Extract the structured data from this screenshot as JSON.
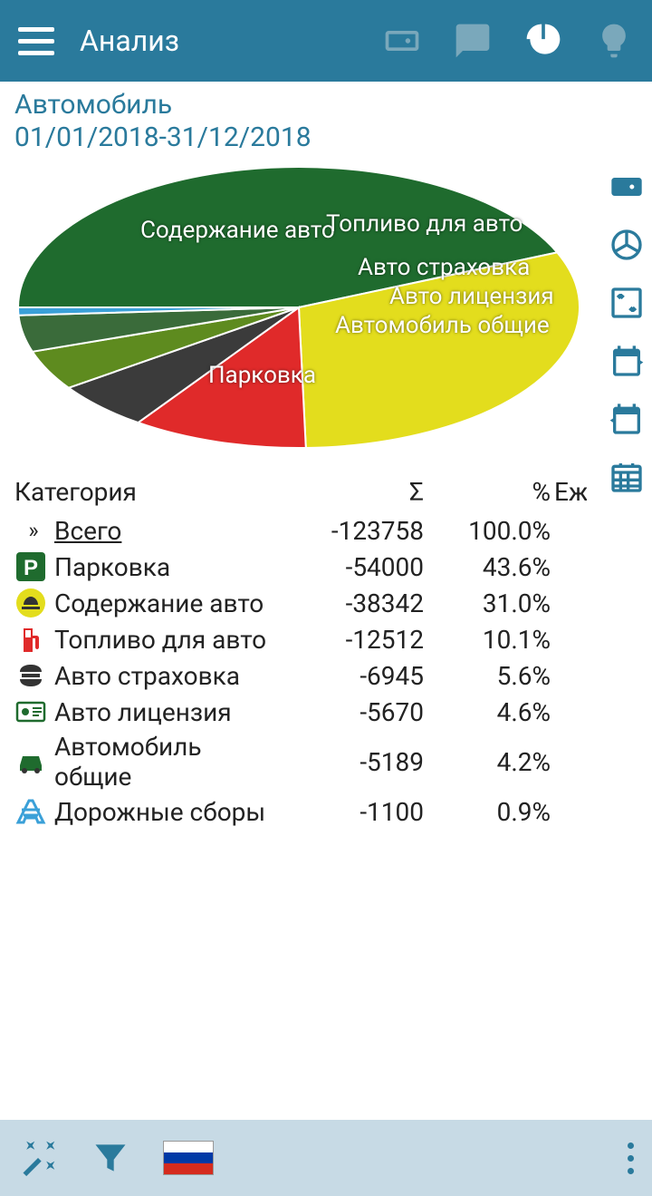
{
  "topbar": {
    "title": "Анализ"
  },
  "header": {
    "category": "Автомобиль",
    "date_range": "01/01/2018-31/12/2018"
  },
  "chart": {
    "type": "pie",
    "slices": [
      {
        "label": "Парковка",
        "percent": 43.6,
        "color": "#1f6b2e"
      },
      {
        "label": "Содержание авто",
        "percent": 31.0,
        "color": "#e3dd1d"
      },
      {
        "label": "Топливо для авто",
        "percent": 10.1,
        "color": "#e02a2a"
      },
      {
        "label": "Авто страховка",
        "percent": 5.6,
        "color": "#3b3b3b"
      },
      {
        "label": "Авто лицензия",
        "percent": 4.6,
        "color": "#5e8b1f"
      },
      {
        "label": "Автомобиль общие",
        "percent": 4.2,
        "color": "#3a6b3a"
      },
      {
        "label": "Дорожные сборы",
        "percent": 0.9,
        "color": "#3aa0d8"
      }
    ],
    "background": "#ffffff"
  },
  "table": {
    "headers": {
      "category": "Категория",
      "sum": "Σ",
      "percent": "%",
      "extra": "Ежедн"
    },
    "total": {
      "label": "Всего",
      "sum": "-123758",
      "percent": "100.0%"
    },
    "rows": [
      {
        "icon": "parking",
        "icon_bg": "#1f6b2e",
        "icon_fg": "#ffffff",
        "label": "Парковка",
        "sum": "-54000",
        "percent": "43.6%"
      },
      {
        "icon": "maintenance",
        "icon_bg": "#e3dd1d",
        "icon_fg": "#333333",
        "label": "Содержание авто",
        "sum": "-38342",
        "percent": "31.0%"
      },
      {
        "icon": "fuel",
        "icon_bg": "#ffffff",
        "icon_fg": "#e02a2a",
        "label": "Топливо для авто",
        "sum": "-12512",
        "percent": "10.1%"
      },
      {
        "icon": "insurance",
        "icon_bg": "#ffffff",
        "icon_fg": "#333333",
        "label": "Авто страховка",
        "sum": "-6945",
        "percent": "5.6%"
      },
      {
        "icon": "license",
        "icon_bg": "#ffffff",
        "icon_fg": "#1f6b2e",
        "label": "Авто лицензия",
        "sum": "-5670",
        "percent": "4.6%"
      },
      {
        "icon": "car",
        "icon_bg": "#ffffff",
        "icon_fg": "#1f6b2e",
        "label": "Автомобиль общие",
        "sum": "-5189",
        "percent": "4.2%"
      },
      {
        "icon": "toll",
        "icon_bg": "#ffffff",
        "icon_fg": "#3aa0d8",
        "label": "Дорожные сборы",
        "sum": "-1100",
        "percent": "0.9%"
      }
    ]
  },
  "colors": {
    "topbar_bg": "#2a7a9c",
    "bottombar_bg": "#c7dae5",
    "accent": "#2a7a9c",
    "icon_inactive": "#7aa8bb",
    "icon_active": "#ffffff"
  }
}
